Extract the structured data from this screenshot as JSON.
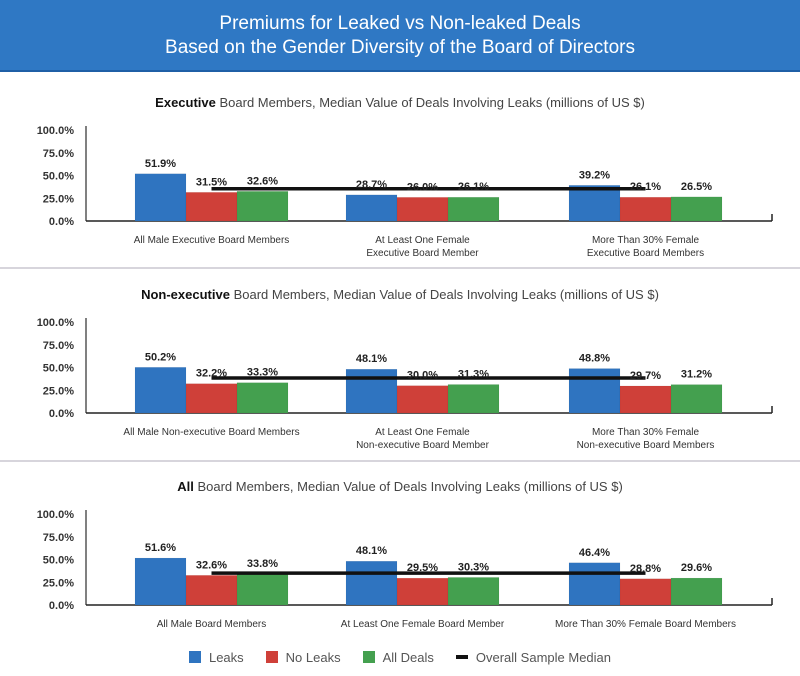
{
  "header": {
    "title_line1": "Premiums for Leaked vs Non-leaked Deals",
    "title_line2": "Based on the Gender Diversity of the Board of Directors"
  },
  "colors": {
    "header_bg": "#2f78c4",
    "leaks": "#2f74c0",
    "no_leaks": "#cf4039",
    "all_deals": "#44a04f",
    "median_line": "#111111"
  },
  "legend": [
    {
      "label": "Leaks",
      "key": "leaks"
    },
    {
      "label": "No Leaks",
      "key": "no_leaks"
    },
    {
      "label": "All Deals",
      "key": "all_deals"
    },
    {
      "label": "Overall Sample Median",
      "key": "median_line"
    }
  ],
  "chart_data": [
    {
      "type": "bar",
      "title_bold": "Executive",
      "title_rest": " Board Members, Median Value of Deals Involving Leaks (millions of US $)",
      "yticks": [
        "100.0%",
        "75.0%",
        "50.0%",
        "25.0%",
        "0.0%"
      ],
      "ylim": [
        0,
        100
      ],
      "categories": [
        [
          "All Male Executive Board Members"
        ],
        [
          "At Least One Female",
          "Executive Board Member"
        ],
        [
          "More Than 30% Female",
          "Executive Board Members"
        ]
      ],
      "series": [
        {
          "name": "Leaks",
          "values": [
            51.9,
            28.7,
            39.2
          ],
          "labels": [
            "51.9%",
            "28.7%",
            "39.2%"
          ]
        },
        {
          "name": "No Leaks",
          "values": [
            31.5,
            26.0,
            26.1
          ],
          "labels": [
            "31.5%",
            "26.0%",
            "26.1%"
          ]
        },
        {
          "name": "All Deals",
          "values": [
            32.6,
            26.1,
            26.5
          ],
          "labels": [
            "32.6%",
            "26.1%",
            "26.5%"
          ]
        }
      ],
      "overall_sample_median": 35.5
    },
    {
      "type": "bar",
      "title_bold": "Non-executive",
      "title_rest": " Board Members, Median Value of Deals Involving Leaks (millions of US $)",
      "yticks": [
        "100.0%",
        "75.0%",
        "50.0%",
        "25.0%",
        "0.0%"
      ],
      "ylim": [
        0,
        100
      ],
      "categories": [
        [
          "All Male Non-executive Board Members"
        ],
        [
          "At Least One Female",
          "Non-executive Board Member"
        ],
        [
          "More Than 30% Female",
          "Non-executive Board Members"
        ]
      ],
      "series": [
        {
          "name": "Leaks",
          "values": [
            50.2,
            48.1,
            48.8
          ],
          "labels": [
            "50.2%",
            "48.1%",
            "48.8%"
          ]
        },
        {
          "name": "No Leaks",
          "values": [
            32.2,
            30.0,
            29.7
          ],
          "labels": [
            "32.2%",
            "30.0%",
            "29.7%"
          ]
        },
        {
          "name": "All Deals",
          "values": [
            33.3,
            31.3,
            31.2
          ],
          "labels": [
            "33.3%",
            "31.3%",
            "31.2%"
          ]
        }
      ],
      "overall_sample_median": 38.5
    },
    {
      "type": "bar",
      "title_bold": "All",
      "title_rest": " Board Members, Median Value of Deals Involving Leaks (millions of US $)",
      "yticks": [
        "100.0%",
        "75.0%",
        "50.0%",
        "25.0%",
        "0.0%"
      ],
      "ylim": [
        0,
        100
      ],
      "categories": [
        [
          "All Male Board Members"
        ],
        [
          "At Least One Female Board Member"
        ],
        [
          "More Than 30% Female Board Members"
        ]
      ],
      "series": [
        {
          "name": "Leaks",
          "values": [
            51.6,
            48.1,
            46.4
          ],
          "labels": [
            "51.6%",
            "48.1%",
            "46.4%"
          ]
        },
        {
          "name": "No Leaks",
          "values": [
            32.6,
            29.5,
            28.8
          ],
          "labels": [
            "32.6%",
            "29.5%",
            "28.8%"
          ]
        },
        {
          "name": "All Deals",
          "values": [
            33.8,
            30.3,
            29.6
          ],
          "labels": [
            "33.8%",
            "30.3%",
            "29.6%"
          ]
        }
      ],
      "overall_sample_median": 35.0
    }
  ]
}
